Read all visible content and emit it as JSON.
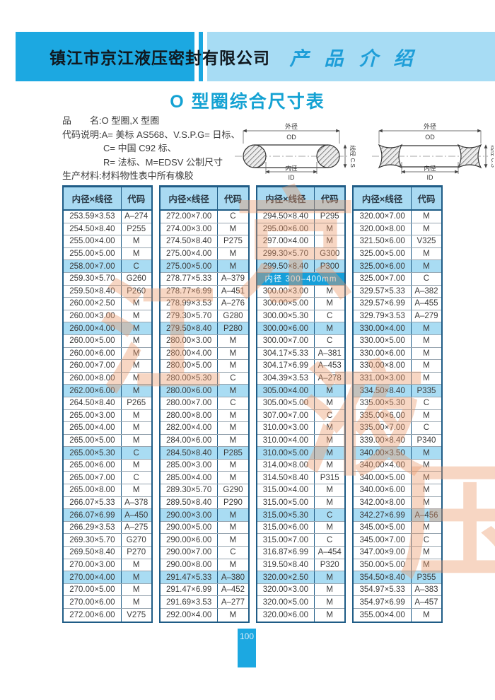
{
  "header": {
    "company": "镇江市京江液压密封有限公司",
    "section": "产品介绍"
  },
  "title": "O 型圈综合尺寸表",
  "intro": {
    "line1": "品　　名:O 型圈,X 型圈",
    "line2": "代码说明:A= 美标 AS568、V.S.P.G= 日标、",
    "line3": "C= 中国 C92 标、",
    "line4": "R= 法标、M=EDSV 公制尺寸",
    "line5": "生产材料:材料物性表中所有橡胶"
  },
  "diagram": {
    "outer": "外径",
    "outer_en": "OD",
    "inner": "内径",
    "inner_en": "ID",
    "cs": "线径 C.S"
  },
  "watermark": [
    "京",
    "江",
    "液",
    "压"
  ],
  "table": {
    "headers": [
      "内径×线径",
      "代码"
    ],
    "columns": [
      [
        [
          "253.59×3.53",
          "A–274"
        ],
        [
          "254.50×8.40",
          "P255"
        ],
        [
          "255.00×4.00",
          "M"
        ],
        [
          "255.00×5.00",
          "M"
        ],
        [
          "258.00×7.00",
          "C",
          1
        ],
        [
          "259.30×5.70",
          "G260"
        ],
        [
          "259.50×8.40",
          "P260"
        ],
        [
          "260.00×2.50",
          "M"
        ],
        [
          "260.00×3.00",
          "M"
        ],
        [
          "260.00×4.00",
          "M",
          1
        ],
        [
          "260.00×5.00",
          "M"
        ],
        [
          "260.00×6.00",
          "M"
        ],
        [
          "260.00×7.00",
          "M"
        ],
        [
          "260.00×8.00",
          "M"
        ],
        [
          "262.00×6.00",
          "M",
          1
        ],
        [
          "264.50×8.40",
          "P265"
        ],
        [
          "265.00×3.00",
          "M"
        ],
        [
          "265.00×4.00",
          "M"
        ],
        [
          "265.00×5.00",
          "M"
        ],
        [
          "265.00×5.30",
          "C",
          1
        ],
        [
          "265.00×6.00",
          "M"
        ],
        [
          "265.00×7.00",
          "C"
        ],
        [
          "265.00×8.00",
          "M"
        ],
        [
          "266.07×5.33",
          "A–378"
        ],
        [
          "266.07×6.99",
          "A–450",
          1
        ],
        [
          "266.29×3.53",
          "A–275"
        ],
        [
          "269.30×5.70",
          "G270"
        ],
        [
          "269.50×8.40",
          "P270"
        ],
        [
          "270.00×3.00",
          "M"
        ],
        [
          "270.00×4.00",
          "M",
          1
        ],
        [
          "270.00×5.00",
          "M"
        ],
        [
          "270.00×6.00",
          "M"
        ],
        [
          "272.00×6.00",
          "V275"
        ]
      ],
      [
        [
          "272.00×7.00",
          "C"
        ],
        [
          "274.00×3.00",
          "M"
        ],
        [
          "274.50×8.40",
          "P275"
        ],
        [
          "275.00×4.00",
          "M"
        ],
        [
          "275.00×5.00",
          "M",
          1
        ],
        [
          "278.77×5.33",
          "A–379"
        ],
        [
          "278.77×6.99",
          "A–451"
        ],
        [
          "278.99×3.53",
          "A–276"
        ],
        [
          "279.30×5.70",
          "G280"
        ],
        [
          "279.50×8.40",
          "P280",
          1
        ],
        [
          "280.00×3.00",
          "M"
        ],
        [
          "280.00×4.00",
          "M"
        ],
        [
          "280.00×5.00",
          "M"
        ],
        [
          "280.00×5.30",
          "C"
        ],
        [
          "280.00×6.00",
          "M",
          1
        ],
        [
          "280.00×7.00",
          "C"
        ],
        [
          "280.00×8.00",
          "M"
        ],
        [
          "282.00×4.00",
          "M"
        ],
        [
          "284.00×6.00",
          "M"
        ],
        [
          "284.50×8.40",
          "P285",
          1
        ],
        [
          "285.00×3.00",
          "M"
        ],
        [
          "285.00×4.00",
          "M"
        ],
        [
          "289.30×5.70",
          "G290"
        ],
        [
          "289.50×8.40",
          "P290"
        ],
        [
          "290.00×3.00",
          "M",
          1
        ],
        [
          "290.00×5.00",
          "M"
        ],
        [
          "290.00×6.00",
          "M"
        ],
        [
          "290.00×7.00",
          "C"
        ],
        [
          "290.00×8.00",
          "M"
        ],
        [
          "291.47×5.33",
          "A–380",
          1
        ],
        [
          "291.47×6.99",
          "A–452"
        ],
        [
          "291.69×3.53",
          "A–277"
        ],
        [
          "292.00×4.00",
          "M"
        ]
      ],
      [
        [
          "294.50×8.40",
          "P295"
        ],
        [
          "295.00×6.00",
          "M"
        ],
        [
          "297.00×4.00",
          "M"
        ],
        [
          "299.30×5.70",
          "G300"
        ],
        [
          "299.50×8.40",
          "P300",
          1
        ],
        {
          "section": "内径 300–400mm"
        },
        [
          "300.00×3.00",
          "M"
        ],
        [
          "300.00×5.00",
          "M"
        ],
        [
          "300.00×5.30",
          "C"
        ],
        [
          "300.00×6.00",
          "M",
          1
        ],
        [
          "300.00×7.00",
          "C"
        ],
        [
          "304.17×5.33",
          "A–381"
        ],
        [
          "304.17×6.99",
          "A–453"
        ],
        [
          "304.39×3.53",
          "A–278"
        ],
        [
          "305.00×4.00",
          "M",
          1
        ],
        [
          "305.00×5.00",
          "M"
        ],
        [
          "307.00×7.00",
          "C"
        ],
        [
          "310.00×3.00",
          "M"
        ],
        [
          "310.00×4.00",
          "M"
        ],
        [
          "310.00×5.00",
          "M",
          1
        ],
        [
          "314.00×8.00",
          "M"
        ],
        [
          "314.50×8.40",
          "P315"
        ],
        [
          "315.00×4.00",
          "M"
        ],
        [
          "315.00×5.00",
          "M"
        ],
        [
          "315.00×5.30",
          "C",
          1
        ],
        [
          "315.00×6.00",
          "M"
        ],
        [
          "315.00×7.00",
          "C"
        ],
        [
          "316.87×6.99",
          "A–454"
        ],
        [
          "319.50×8.40",
          "P320"
        ],
        [
          "320.00×2.50",
          "M",
          1
        ],
        [
          "320.00×3.00",
          "M"
        ],
        [
          "320.00×5.00",
          "M"
        ],
        [
          "320.00×6.00",
          "M"
        ]
      ],
      [
        [
          "320.00×7.00",
          "M"
        ],
        [
          "320.00×8.00",
          "M"
        ],
        [
          "321.50×6.00",
          "V325"
        ],
        [
          "325.00×5.00",
          "M"
        ],
        [
          "325.00×6.00",
          "M",
          1
        ],
        [
          "325.00×7.00",
          "C"
        ],
        [
          "329.57×5.33",
          "A–382"
        ],
        [
          "329.57×6.99",
          "A–455"
        ],
        [
          "329.79×3.53",
          "A–279"
        ],
        [
          "330.00×4.00",
          "M",
          1
        ],
        [
          "330.00×5.00",
          "M"
        ],
        [
          "330.00×6.00",
          "M"
        ],
        [
          "330.00×8.00",
          "M"
        ],
        [
          "331.00×3.00",
          "M"
        ],
        [
          "334.50×8.40",
          "P335",
          1
        ],
        [
          "335.00×5.30",
          "C"
        ],
        [
          "335.00×6.00",
          "M"
        ],
        [
          "335.00×7.00",
          "C"
        ],
        [
          "339.00×8.40",
          "P340"
        ],
        [
          "340.00×3.50",
          "M",
          1
        ],
        [
          "340.00×4.00",
          "M"
        ],
        [
          "340.00×5.00",
          "M"
        ],
        [
          "340.00×6.00",
          "M"
        ],
        [
          "342.00×8.00",
          "M"
        ],
        [
          "342.27×6.99",
          "A–456",
          1
        ],
        [
          "345.00×5.00",
          "M"
        ],
        [
          "345.00×7.00",
          "C"
        ],
        [
          "347.00×9.00",
          "M"
        ],
        [
          "350.00×5.00",
          "M"
        ],
        [
          "354.50×8.40",
          "P355",
          1
        ],
        [
          "354.97×5.33",
          "A–383"
        ],
        [
          "354.97×6.99",
          "A–457"
        ],
        [
          "355.00×4.00",
          "M"
        ]
      ]
    ]
  },
  "footer": {
    "page": "100"
  }
}
